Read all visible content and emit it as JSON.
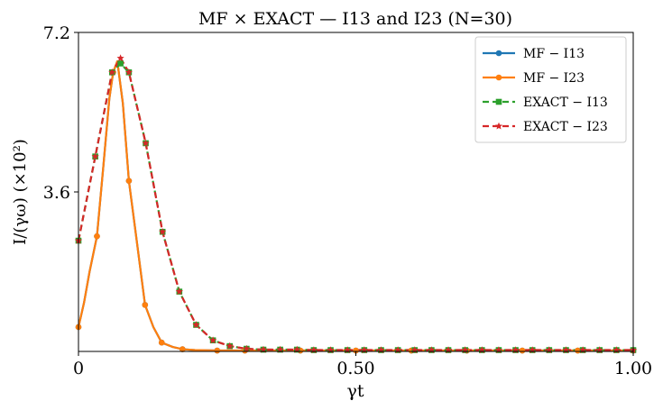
{
  "chart_data": {
    "type": "line",
    "title": "MF × EXACT — I13 and I23 (N=30)",
    "xlabel": "γt",
    "ylabel": "I/(γω) (×10²)",
    "xlim": [
      0,
      1.0
    ],
    "ylim": [
      0,
      7.2
    ],
    "x_ticks": [
      {
        "value": 0,
        "label": "0"
      },
      {
        "value": 0.5,
        "label": "0.50"
      },
      {
        "value": 1.0,
        "label": "1.00"
      }
    ],
    "y_ticks": [
      {
        "value": 3.6,
        "label": "3.6"
      },
      {
        "value": 7.2,
        "label": "7.2"
      }
    ],
    "grid": false,
    "legend_position": "top-right",
    "series": [
      {
        "name": "MF − I13",
        "color": "#1f77b4",
        "style": "solid",
        "marker": "circle",
        "x": [
          0,
          0.01,
          0.02,
          0.0333,
          0.045,
          0.0556,
          0.0625,
          0.07,
          0.08,
          0.0909,
          0.105,
          0.12,
          0.135,
          0.15,
          0.17,
          0.1875,
          0.21,
          0.25,
          0.3,
          0.4,
          0.5,
          0.6,
          0.7,
          0.8,
          0.9,
          1.0
        ],
        "y": [
          0.55,
          1.1,
          1.8,
          2.6,
          4.2,
          5.7,
          6.3,
          6.55,
          5.6,
          3.85,
          2.5,
          1.05,
          0.55,
          0.2,
          0.1,
          0.05,
          0.03,
          0.02,
          0.02,
          0.02,
          0.02,
          0.02,
          0.02,
          0.02,
          0.02,
          0.02
        ]
      },
      {
        "name": "MF − I23",
        "color": "#ff7f0e",
        "style": "solid",
        "marker": "circle",
        "x": [
          0,
          0.01,
          0.02,
          0.0333,
          0.045,
          0.0556,
          0.0625,
          0.07,
          0.08,
          0.0909,
          0.105,
          0.12,
          0.135,
          0.15,
          0.17,
          0.1875,
          0.21,
          0.25,
          0.3,
          0.4,
          0.5,
          0.6,
          0.7,
          0.8,
          0.9,
          1.0
        ],
        "y": [
          0.55,
          1.1,
          1.8,
          2.6,
          4.2,
          5.7,
          6.3,
          6.55,
          5.6,
          3.85,
          2.5,
          1.05,
          0.55,
          0.2,
          0.1,
          0.05,
          0.03,
          0.02,
          0.02,
          0.02,
          0.02,
          0.02,
          0.02,
          0.02,
          0.02,
          0.02
        ]
      },
      {
        "name": "EXACT − I13",
        "color": "#2ca02c",
        "style": "dashed",
        "marker": "square",
        "x": [
          0,
          0.0303,
          0.0606,
          0.0758,
          0.0909,
          0.1212,
          0.1515,
          0.1818,
          0.2121,
          0.2424,
          0.2727,
          0.303,
          0.3333,
          0.3636,
          0.3939,
          0.4242,
          0.4545,
          0.4848,
          0.5152,
          0.5455,
          0.5758,
          0.6061,
          0.6364,
          0.6667,
          0.697,
          0.7273,
          0.7576,
          0.7879,
          0.8182,
          0.8485,
          0.8788,
          0.9091,
          0.9394,
          0.9697,
          1.0
        ],
        "y": [
          2.5,
          4.4,
          6.3,
          6.5,
          6.3,
          4.7,
          2.7,
          1.35,
          0.6,
          0.25,
          0.12,
          0.06,
          0.04,
          0.04,
          0.04,
          0.03,
          0.03,
          0.03,
          0.03,
          0.03,
          0.03,
          0.03,
          0.03,
          0.03,
          0.03,
          0.03,
          0.03,
          0.03,
          0.03,
          0.03,
          0.03,
          0.03,
          0.03,
          0.03,
          0.03
        ]
      },
      {
        "name": "EXACT − I23",
        "color": "#d62728",
        "style": "dashed",
        "marker": "star",
        "x": [
          0,
          0.0303,
          0.0606,
          0.0758,
          0.0909,
          0.1212,
          0.1515,
          0.1818,
          0.2121,
          0.2424,
          0.2727,
          0.303,
          0.3333,
          0.3636,
          0.3939,
          0.4242,
          0.4545,
          0.4848,
          0.5152,
          0.5455,
          0.5758,
          0.6061,
          0.6364,
          0.6667,
          0.697,
          0.7273,
          0.7576,
          0.7879,
          0.8182,
          0.8485,
          0.8788,
          0.9091,
          0.9394,
          0.9697,
          1.0
        ],
        "y": [
          2.5,
          4.4,
          6.3,
          6.62,
          6.3,
          4.7,
          2.7,
          1.35,
          0.6,
          0.25,
          0.12,
          0.06,
          0.04,
          0.04,
          0.04,
          0.03,
          0.03,
          0.03,
          0.03,
          0.03,
          0.03,
          0.03,
          0.03,
          0.03,
          0.03,
          0.03,
          0.03,
          0.03,
          0.03,
          0.03,
          0.03,
          0.03,
          0.03,
          0.03,
          0.03
        ]
      }
    ]
  }
}
